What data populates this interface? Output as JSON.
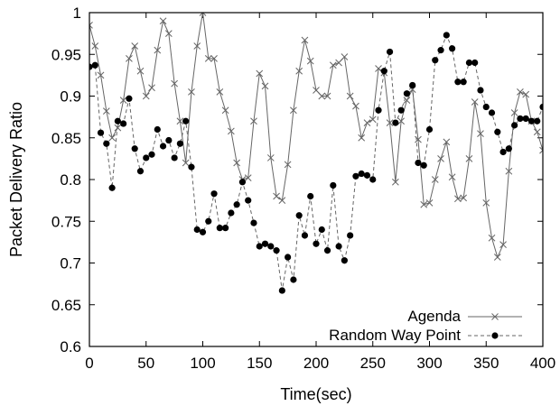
{
  "chart_data": {
    "type": "line",
    "title": "",
    "xlabel": "Time(sec)",
    "ylabel": "Packet Delivery Ratio",
    "xlim": [
      0,
      400
    ],
    "ylim": [
      0.6,
      1.0
    ],
    "x_ticks": [
      "0",
      "50",
      "100",
      "150",
      "200",
      "250",
      "300",
      "350",
      "400"
    ],
    "y_ticks": [
      "0.6",
      "0.65",
      "0.7",
      "0.75",
      "0.8",
      "0.85",
      "0.9",
      "0.95",
      "1"
    ],
    "grid": false,
    "legend": "bottom-right",
    "series": [
      {
        "name": "Agenda",
        "marker": "x",
        "line": "solid",
        "color": "#666666",
        "x": [
          0,
          5,
          10,
          15,
          20,
          25,
          30,
          35,
          40,
          45,
          50,
          55,
          60,
          65,
          70,
          75,
          80,
          85,
          90,
          95,
          100,
          105,
          110,
          115,
          120,
          125,
          130,
          135,
          140,
          145,
          150,
          155,
          160,
          165,
          170,
          175,
          180,
          185,
          190,
          195,
          200,
          205,
          210,
          215,
          220,
          225,
          230,
          235,
          240,
          245,
          250,
          255,
          260,
          265,
          270,
          275,
          280,
          285,
          290,
          295,
          300,
          305,
          310,
          315,
          320,
          325,
          330,
          335,
          340,
          345,
          350,
          355,
          360,
          365,
          370,
          375,
          380,
          385,
          390,
          395,
          400
        ],
        "y": [
          0.985,
          0.96,
          0.925,
          0.882,
          0.85,
          0.862,
          0.895,
          0.945,
          0.96,
          0.93,
          0.9,
          0.91,
          0.955,
          0.99,
          0.975,
          0.915,
          0.87,
          0.82,
          0.905,
          0.96,
          1.0,
          0.945,
          0.945,
          0.905,
          0.883,
          0.858,
          0.82,
          0.8,
          0.802,
          0.87,
          0.927,
          0.912,
          0.826,
          0.78,
          0.775,
          0.818,
          0.883,
          0.93,
          0.967,
          0.942,
          0.907,
          0.9,
          0.9,
          0.937,
          0.94,
          0.947,
          0.9,
          0.888,
          0.85,
          0.868,
          0.872,
          0.933,
          0.928,
          0.868,
          0.797,
          0.87,
          0.895,
          0.908,
          0.848,
          0.77,
          0.772,
          0.8,
          0.825,
          0.845,
          0.803,
          0.777,
          0.778,
          0.825,
          0.893,
          0.855,
          0.772,
          0.73,
          0.707,
          0.722,
          0.81,
          0.88,
          0.905,
          0.902,
          0.87,
          0.857,
          0.835
        ]
      },
      {
        "name": "Random Way Point",
        "marker": "filled-circle",
        "line": "dashed",
        "color": "#666666",
        "x": [
          0,
          5,
          10,
          15,
          20,
          25,
          30,
          35,
          40,
          45,
          50,
          55,
          60,
          65,
          70,
          75,
          80,
          85,
          90,
          95,
          100,
          105,
          110,
          115,
          120,
          125,
          130,
          135,
          140,
          145,
          150,
          155,
          160,
          165,
          170,
          175,
          180,
          185,
          190,
          195,
          200,
          205,
          210,
          215,
          220,
          225,
          230,
          235,
          240,
          245,
          250,
          255,
          260,
          265,
          270,
          275,
          280,
          285,
          290,
          295,
          300,
          305,
          310,
          315,
          320,
          325,
          330,
          335,
          340,
          345,
          350,
          355,
          360,
          365,
          370,
          375,
          380,
          385,
          390,
          395,
          400
        ],
        "y": [
          0.935,
          0.937,
          0.856,
          0.843,
          0.79,
          0.87,
          0.867,
          0.897,
          0.837,
          0.81,
          0.826,
          0.83,
          0.86,
          0.84,
          0.847,
          0.826,
          0.843,
          0.87,
          0.815,
          0.74,
          0.737,
          0.75,
          0.783,
          0.742,
          0.742,
          0.76,
          0.77,
          0.797,
          0.775,
          0.748,
          0.72,
          0.723,
          0.72,
          0.715,
          0.667,
          0.707,
          0.68,
          0.757,
          0.733,
          0.78,
          0.723,
          0.74,
          0.715,
          0.793,
          0.72,
          0.703,
          0.733,
          0.804,
          0.807,
          0.805,
          0.8,
          0.883,
          0.93,
          0.953,
          0.868,
          0.883,
          0.903,
          0.913,
          0.82,
          0.817,
          0.86,
          0.943,
          0.955,
          0.973,
          0.957,
          0.917,
          0.917,
          0.94,
          0.94,
          0.907,
          0.887,
          0.88,
          0.857,
          0.833,
          0.837,
          0.865,
          0.873,
          0.873,
          0.87,
          0.87,
          0.887
        ]
      }
    ]
  }
}
